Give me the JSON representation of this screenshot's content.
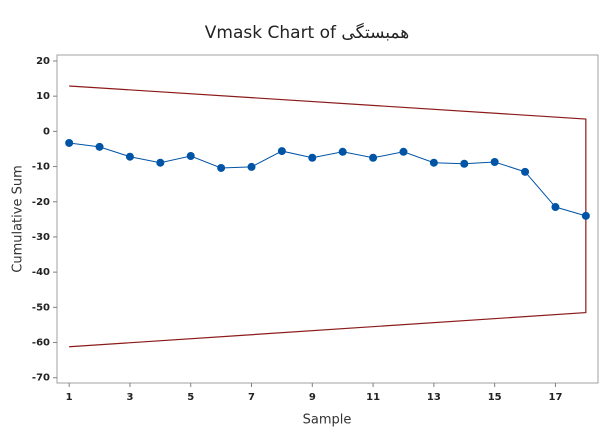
{
  "chart_data": {
    "type": "line",
    "title": "Vmask Chart of همبستگی",
    "x_label": "Sample",
    "y_label": "Cumulative Sum",
    "x": [
      1,
      2,
      3,
      4,
      5,
      6,
      7,
      8,
      9,
      10,
      11,
      12,
      13,
      14,
      15,
      16,
      17,
      18
    ],
    "series": [
      {
        "name": "Cumulative Sum",
        "color": "#0054a6",
        "values": [
          -3.3,
          -4.4,
          -7.2,
          -8.9,
          -7.0,
          -10.4,
          -10.1,
          -5.6,
          -7.5,
          -5.8,
          -7.5,
          -5.8,
          -8.9,
          -9.2,
          -8.7,
          -11.5,
          -21.5,
          -24.0
        ]
      }
    ],
    "vmask": {
      "color": "#8b1a1a",
      "x": [
        1,
        18,
        18,
        1
      ],
      "values": [
        12.9,
        3.5,
        -51.5,
        -61.2
      ]
    },
    "xlim": [
      0.6,
      18.4
    ],
    "ylim": [
      -71.5,
      21.7
    ],
    "xticks": [
      1,
      3,
      5,
      7,
      9,
      11,
      13,
      15,
      17
    ],
    "yticks": [
      20,
      10,
      0,
      -10,
      -20,
      -30,
      -40,
      -50,
      -60,
      -70
    ],
    "grid": false
  }
}
